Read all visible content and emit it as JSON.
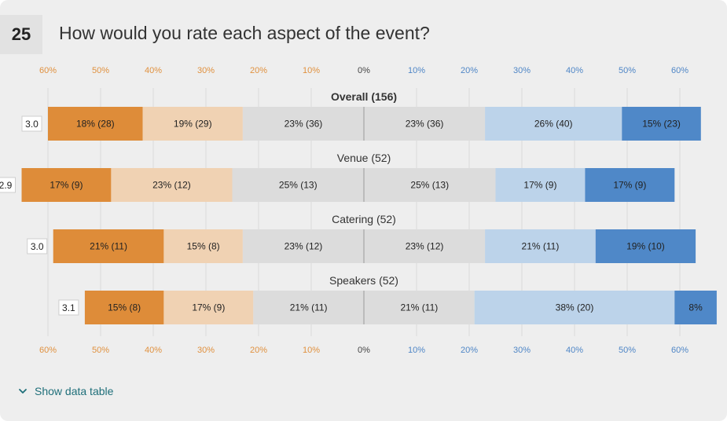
{
  "question": {
    "number": "25",
    "title": "How would you rate each aspect of the event?"
  },
  "toggle": {
    "label": "Show data table"
  },
  "colors": {
    "axis_neg": "#e0913f",
    "axis_pos": "#4f86c6",
    "axis_zero": "#444444",
    "grid": "#d9d9d9",
    "segments": [
      "#de8c39",
      "#f0d2b3",
      "#dcdcdc",
      "#dcdcdc",
      "#bcd3ea",
      "#4f88c8"
    ]
  },
  "chart_data": {
    "type": "bar",
    "subtype": "diverging-stacked",
    "xlim": [
      -60,
      60
    ],
    "ticks": [
      -60,
      -50,
      -40,
      -30,
      -20,
      -10,
      0,
      10,
      20,
      30,
      40,
      50,
      60
    ],
    "tick_labels": [
      "60%",
      "50%",
      "40%",
      "30%",
      "20%",
      "10%",
      "0%",
      "10%",
      "20%",
      "30%",
      "40%",
      "50%",
      "60%"
    ],
    "grid": true,
    "rows": [
      {
        "label": "Overall (156)",
        "bold": true,
        "score": "3.0",
        "values": [
          18,
          19,
          23,
          23,
          26,
          15
        ],
        "labels": [
          "18% (28)",
          "19% (29)",
          "23% (36)",
          "23% (36)",
          "26% (40)",
          "15% (23)"
        ]
      },
      {
        "label": "Venue (52)",
        "bold": false,
        "score": "2.9",
        "values": [
          17,
          23,
          25,
          25,
          17,
          17
        ],
        "labels": [
          "17% (9)",
          "23% (12)",
          "25% (13)",
          "25% (13)",
          "17% (9)",
          "17% (9)"
        ]
      },
      {
        "label": "Catering (52)",
        "bold": false,
        "score": "3.0",
        "values": [
          21,
          15,
          23,
          23,
          21,
          19
        ],
        "labels": [
          "21% (11)",
          "15% (8)",
          "23% (12)",
          "23% (12)",
          "21% (11)",
          "19% (10)"
        ]
      },
      {
        "label": "Speakers (52)",
        "bold": false,
        "score": "3.1",
        "values": [
          15,
          17,
          21,
          21,
          38,
          8
        ],
        "labels": [
          "15% (8)",
          "17% (9)",
          "21% (11)",
          "21% (11)",
          "38% (20)",
          "8%"
        ]
      }
    ]
  }
}
